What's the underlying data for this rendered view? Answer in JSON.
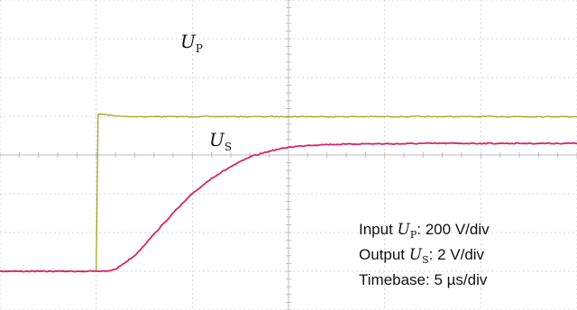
{
  "chart_data": {
    "type": "line",
    "x": [
      -5,
      -4,
      -3,
      -2,
      -1,
      0,
      0.1,
      0.5,
      1,
      2,
      3,
      4,
      5,
      6,
      7,
      8,
      9,
      10,
      11,
      12,
      13,
      14,
      15,
      16,
      17,
      18,
      19,
      20,
      21,
      22,
      23,
      24,
      25
    ],
    "series": [
      {
        "name": "U",
        "name_subscript": "P",
        "color": "#a6a61e",
        "values": [
          -3.0,
          -3.0,
          -3.0,
          -3.0,
          -3.0,
          -3.0,
          1.05,
          1.05,
          1.0,
          0.99,
          0.99,
          0.99,
          0.99,
          0.99,
          0.99,
          0.99,
          0.99,
          0.99,
          0.99,
          0.99,
          0.99,
          0.99,
          0.99,
          0.99,
          0.99,
          0.99,
          0.99,
          0.99,
          0.99,
          0.99,
          0.99,
          0.99,
          0.99
        ]
      },
      {
        "name": "U",
        "name_subscript": "S",
        "color": "#d6246a",
        "values": [
          -3.0,
          -3.0,
          -3.0,
          -3.0,
          -3.0,
          -3.0,
          -3.0,
          -3.0,
          -2.95,
          -2.6,
          -2.05,
          -1.5,
          -1.0,
          -0.6,
          -0.3,
          -0.05,
          0.1,
          0.2,
          0.25,
          0.27,
          0.28,
          0.29,
          0.29,
          0.29,
          0.3,
          0.3,
          0.3,
          0.3,
          0.3,
          0.3,
          0.3,
          0.3,
          0.3
        ]
      }
    ],
    "xlim": [
      -5,
      25
    ],
    "ylim": [
      -4,
      4
    ],
    "grid": true,
    "annotations": {
      "line1_prefix": "Input ",
      "line1_var": "U",
      "line1_sub": "P",
      "line1_suffix": ": 200 V/div",
      "line2_prefix": "Output ",
      "line2_var": "U",
      "line2_sub": "S",
      "line2_suffix": ": 2 V/div",
      "line3": "Timebase: 5 µs/div"
    }
  },
  "colors": {
    "grid": "#c8c8c8",
    "center_axis": "#bdbdbd",
    "background": "#ffffff"
  }
}
